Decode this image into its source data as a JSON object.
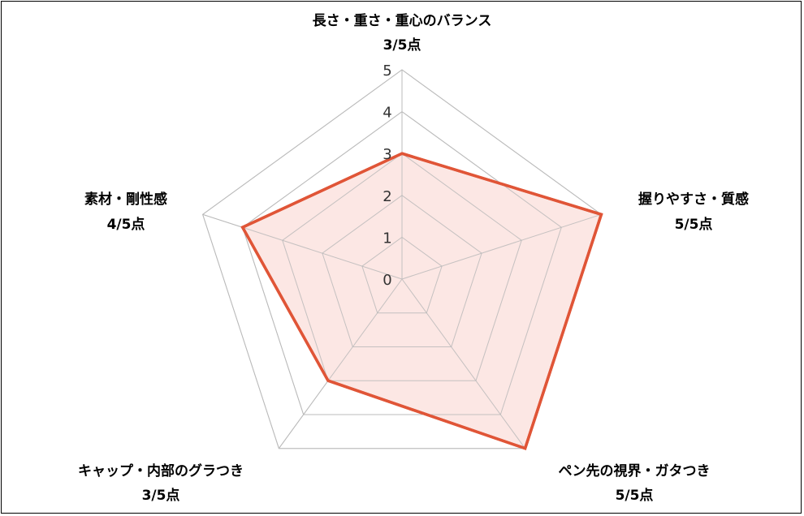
{
  "chart_data": {
    "type": "radar",
    "title": "",
    "max": 5,
    "ticks": [
      "0",
      "1",
      "2",
      "3",
      "4",
      "5"
    ],
    "axes": [
      {
        "label": "長さ・重さ・重心のバランス",
        "score_text": "3/5点",
        "value": 3
      },
      {
        "label": "握りやすさ・質感",
        "score_text": "5/5点",
        "value": 5
      },
      {
        "label": "ペン先の視界・ガタつき",
        "score_text": "5/5点",
        "value": 5
      },
      {
        "label": "キャップ・内部のグラつき",
        "score_text": "3/5点",
        "value": 3
      },
      {
        "label": "素材・剛性感",
        "score_text": "4/5点",
        "value": 4
      }
    ],
    "colors": {
      "line": "#e05537",
      "fill": "#fbe3df",
      "grid": "#bbbbbb"
    }
  }
}
